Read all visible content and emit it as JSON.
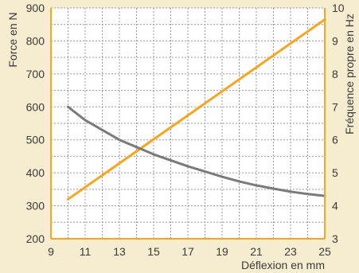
{
  "chart_data": {
    "type": "line",
    "xlabel": "Déflexion en mm",
    "ylabel_left": "Force en N",
    "ylabel_right": "Fréquence propre en Hz",
    "xlim": [
      9,
      25
    ],
    "ylim_left": [
      200,
      900
    ],
    "ylim_right": [
      3,
      10
    ],
    "xticks": [
      "9",
      "11",
      "13",
      "15",
      "17",
      "19",
      "21",
      "23",
      "25"
    ],
    "yticks_left": [
      "200",
      "300",
      "400",
      "500",
      "600",
      "700",
      "800",
      "900"
    ],
    "yticks_right": [
      "3",
      "4",
      "5",
      "6",
      "7",
      "8",
      "9",
      "10"
    ],
    "grid": true,
    "colors": {
      "background": "#f6ecd0",
      "plot_bg": "#ffffff",
      "frame": "#f5a623",
      "force": "#f5a623",
      "frequency": "#7a7a7a",
      "grid": "#9a9a9a"
    },
    "series": [
      {
        "axis": "left",
        "color": "#f5a623",
        "x": [
          10,
          25
        ],
        "y": [
          320,
          865
        ]
      },
      {
        "axis": "right",
        "color": "#7a7a7a",
        "x": [
          10,
          11,
          12,
          13,
          14,
          15,
          16,
          17,
          18,
          19,
          20,
          21,
          22,
          23,
          24,
          25
        ],
        "y": [
          7.0,
          6.6,
          6.3,
          6.0,
          5.78,
          5.56,
          5.38,
          5.2,
          5.04,
          4.88,
          4.74,
          4.62,
          4.52,
          4.43,
          4.36,
          4.3
        ]
      }
    ]
  }
}
